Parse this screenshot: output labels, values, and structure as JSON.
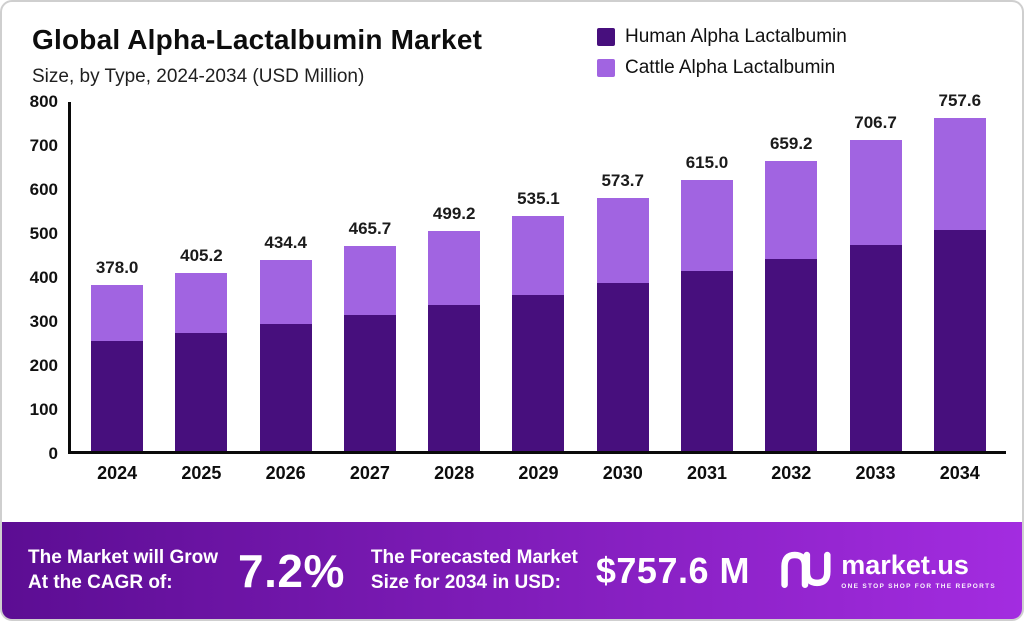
{
  "header": {
    "title": "Global Alpha-Lactalbumin Market",
    "subtitle": "Size, by Type, 2024-2034 (USD Million)"
  },
  "legend": {
    "items": [
      {
        "label": "Human Alpha Lactalbumin",
        "color": "#470f7d"
      },
      {
        "label": "Cattle Alpha Lactalbumin",
        "color": "#a164e1"
      }
    ]
  },
  "chart_data": {
    "type": "bar",
    "stacked": true,
    "title": "Global Alpha-Lactalbumin Market Size, by Type, 2024-2034 (USD Million)",
    "categories": [
      "2024",
      "2025",
      "2026",
      "2027",
      "2028",
      "2029",
      "2030",
      "2031",
      "2032",
      "2033",
      "2034"
    ],
    "series": [
      {
        "name": "Human Alpha Lactalbumin",
        "color": "#470f7d",
        "values": [
          250.0,
          268.0,
          288.0,
          309.0,
          331.0,
          355.0,
          381.0,
          408.0,
          437.0,
          469.0,
          503.0
        ]
      },
      {
        "name": "Cattle Alpha Lactalbumin",
        "color": "#a164e1",
        "values": [
          128.0,
          137.2,
          146.4,
          156.7,
          168.2,
          180.1,
          192.7,
          207.0,
          222.2,
          237.7,
          254.6
        ]
      }
    ],
    "totals": [
      378.0,
      405.2,
      434.4,
      465.7,
      499.2,
      535.1,
      573.7,
      615.0,
      659.2,
      706.7,
      757.6
    ],
    "total_labels": [
      "378.0",
      "405.2",
      "434.4",
      "465.7",
      "499.2",
      "535.1",
      "573.7",
      "615.0",
      "659.2",
      "706.7",
      "757.6"
    ],
    "xlabel": "",
    "ylabel": "",
    "ylim": [
      0,
      800
    ],
    "yticks": [
      0,
      100,
      200,
      300,
      400,
      500,
      600,
      700,
      800
    ],
    "grid": false,
    "legend_position": "top-right"
  },
  "footer": {
    "cagr_label_line1": "The Market will Grow",
    "cagr_label_line2": "At the CAGR of:",
    "cagr_value": "7.2%",
    "forecast_label_line1": "The Forecasted Market",
    "forecast_label_line2": "Size for 2034 in USD:",
    "forecast_value": "$757.6 M",
    "brand_name": "market.us",
    "brand_tagline": "ONE STOP SHOP FOR THE REPORTS"
  },
  "colors": {
    "human_series": "#470f7d",
    "cattle_series": "#a164e1",
    "footer_gradient_start": "#5c0d93",
    "footer_gradient_end": "#a32ce0",
    "axis": "#0a0a0a"
  }
}
